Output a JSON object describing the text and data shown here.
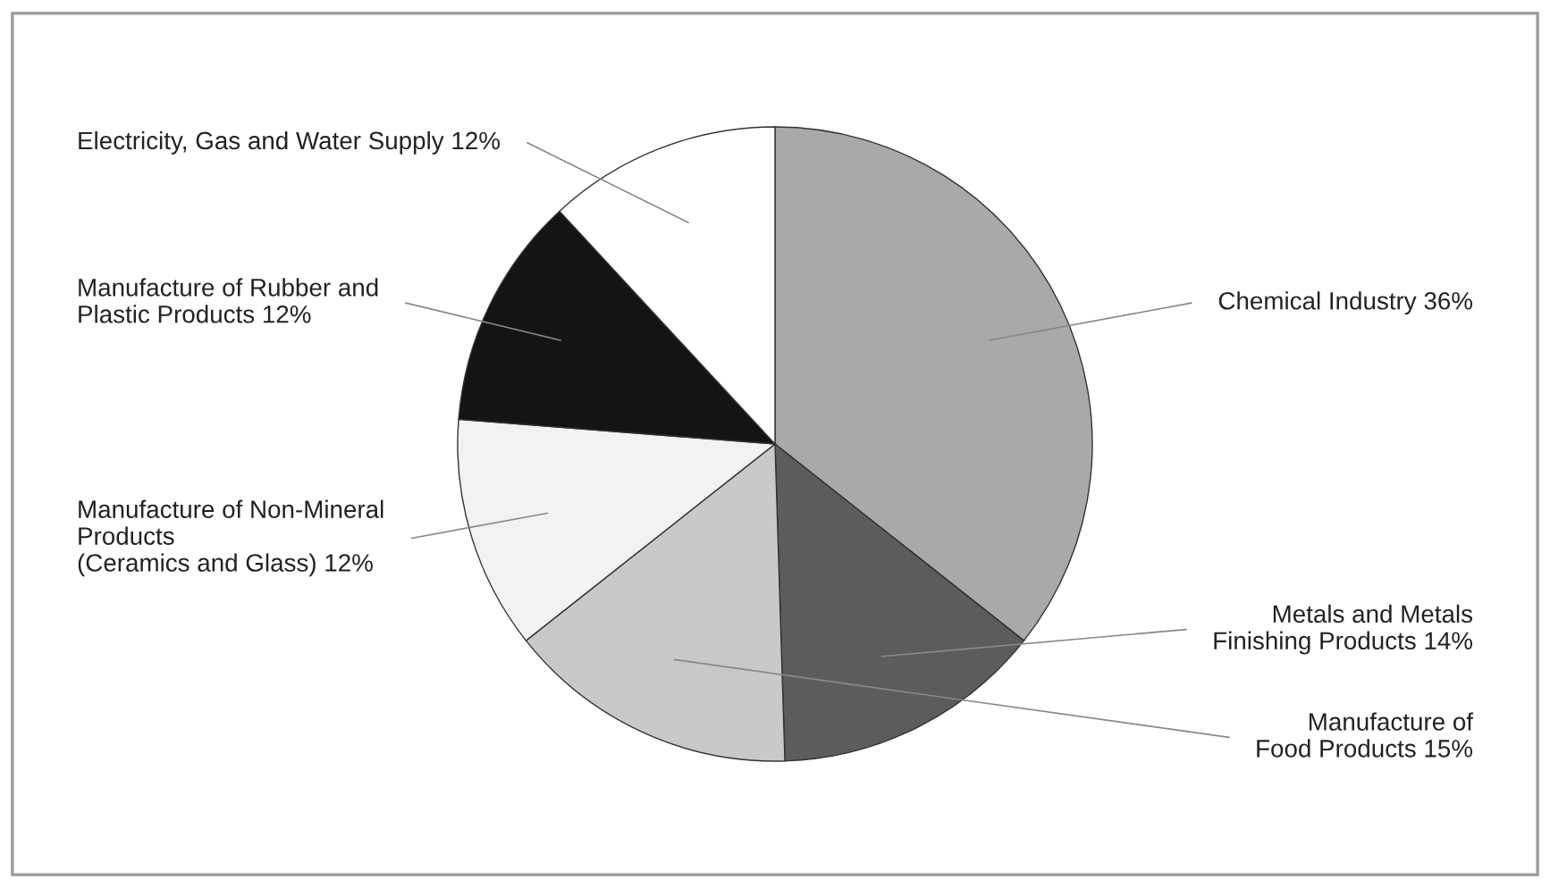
{
  "chart_data": {
    "type": "pie",
    "categories": [
      "Chemical Industry",
      "Metals and Metals\nFinishing Products",
      "Manufacture of\nFood Products",
      "Manufacture of Non-Mineral\nProducts\n(Ceramics and Glass)",
      "Manufacture of Rubber and\nPlastic Products",
      "Electricity, Gas and Water Supply"
    ],
    "values": [
      36,
      14,
      15,
      12,
      12,
      12
    ],
    "value_labels": [
      "36%",
      "14%",
      "15%",
      "12%",
      "12%",
      "12%"
    ],
    "colors": [
      "#a9a9a9",
      "#5c5c5c",
      "#c9c9c9",
      "#f2f2f2",
      "#141414",
      "#ffffff"
    ],
    "legend": false
  }
}
